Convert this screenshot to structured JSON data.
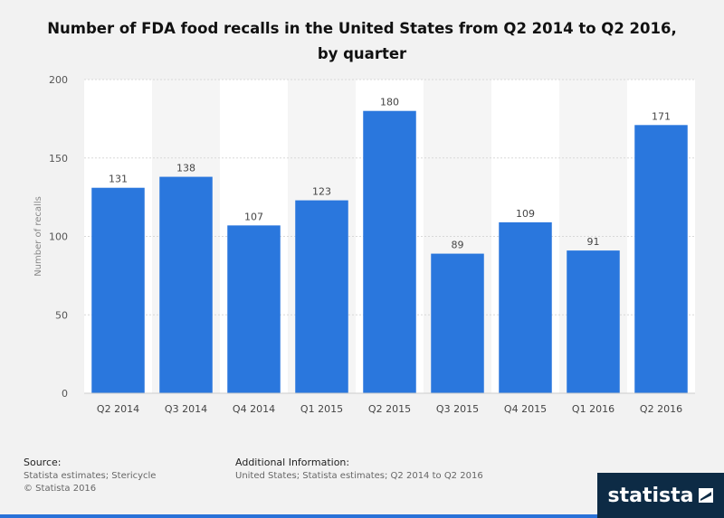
{
  "chart_data": {
    "type": "bar",
    "title": "Number of FDA food recalls in the United States from Q2 2014 to Q2 2016, by quarter",
    "categories": [
      "Q2 2014",
      "Q3 2014",
      "Q4 2014",
      "Q1 2015",
      "Q2 2015",
      "Q3 2015",
      "Q4 2015",
      "Q1 2016",
      "Q2 2016"
    ],
    "values": [
      131,
      138,
      107,
      123,
      180,
      89,
      109,
      91,
      171
    ],
    "xlabel": "",
    "ylabel": "Number of recalls",
    "ylim": [
      0,
      200
    ],
    "yticks": [
      0,
      50,
      100,
      150,
      200
    ],
    "bar_color": "#2a77dd",
    "grid": true
  },
  "footer": {
    "source_label": "Source:",
    "source_lines": [
      "Statista estimates; Stericycle",
      "© Statista 2016"
    ],
    "additional_label": "Additional Information:",
    "additional_text": "United States; Statista estimates; Q2 2014 to Q2 2016"
  },
  "brand": {
    "name": "statista",
    "icon": "statista-logo-icon"
  }
}
